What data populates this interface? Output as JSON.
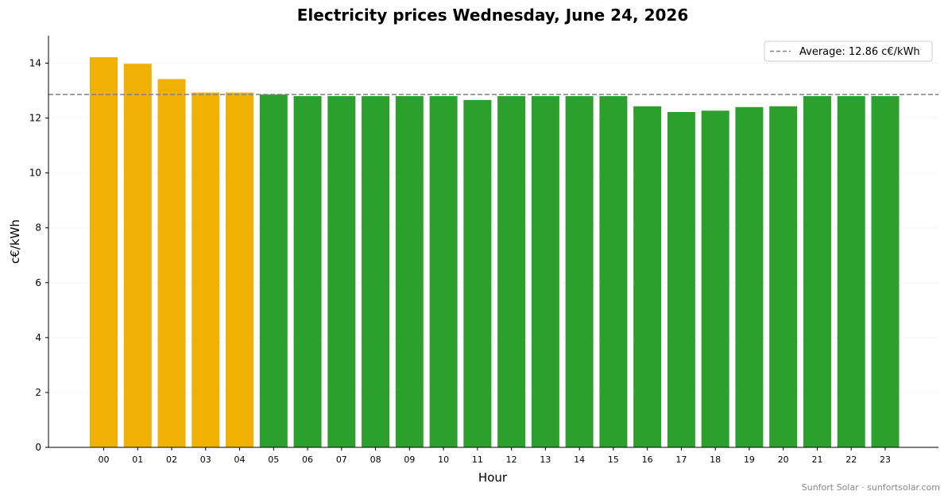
{
  "chart_data": {
    "type": "bar",
    "title": "Electricity prices Wednesday, June 24, 2026",
    "xlabel": "Hour",
    "ylabel": "c€/kWh",
    "ylim": [
      0,
      15
    ],
    "yticks": [
      0,
      2,
      4,
      6,
      8,
      10,
      12,
      14
    ],
    "grid": "horizontal dotted",
    "categories": [
      "00",
      "01",
      "02",
      "03",
      "04",
      "05",
      "06",
      "07",
      "08",
      "09",
      "10",
      "11",
      "12",
      "13",
      "14",
      "15",
      "16",
      "17",
      "18",
      "19",
      "20",
      "21",
      "22",
      "23"
    ],
    "values": [
      14.22,
      13.98,
      13.42,
      12.93,
      12.93,
      12.86,
      12.8,
      12.8,
      12.8,
      12.8,
      12.8,
      12.66,
      12.8,
      12.8,
      12.8,
      12.8,
      12.43,
      12.22,
      12.27,
      12.4,
      12.43,
      12.8,
      12.8,
      12.8
    ],
    "average": 12.86,
    "legend": {
      "position": "top-right",
      "entries": [
        "Average: 12.86 c€/kWh"
      ]
    },
    "colors": {
      "above_average": "#f0b004",
      "below_average": "#2ca02c",
      "average_line": "#808080"
    }
  },
  "footer": "Sunfort Solar · sunfortsolar.com"
}
